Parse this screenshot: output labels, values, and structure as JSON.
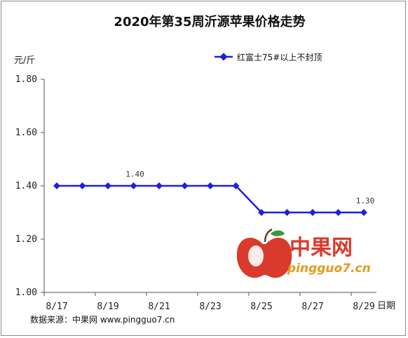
{
  "chart_data": {
    "type": "line",
    "title": "2020年第35周沂源苹果价格走势",
    "ylabel": "元/斤",
    "xlabel": "日期",
    "ylim": [
      1.0,
      1.8
    ],
    "yticks": [
      "1.00",
      "1.20",
      "1.40",
      "1.60",
      "1.80"
    ],
    "categories": [
      "8/17",
      "8/18",
      "8/19",
      "8/20",
      "8/21",
      "8/22",
      "8/23",
      "8/24",
      "8/25",
      "8/26",
      "8/27",
      "8/28",
      "8/29"
    ],
    "x_tick_labels": [
      "8/17",
      "8/19",
      "8/21",
      "8/23",
      "8/25",
      "8/27",
      "8/29"
    ],
    "series": [
      {
        "name": "红富士75#以上不封顶",
        "color": "#1f1fe0",
        "values": [
          1.4,
          1.4,
          1.4,
          1.4,
          1.4,
          1.4,
          1.4,
          1.4,
          1.3,
          1.3,
          1.3,
          1.3,
          1.3
        ]
      }
    ],
    "annotations": [
      {
        "index": 3,
        "text": "1.40"
      },
      {
        "index": 12,
        "text": "1.30"
      }
    ],
    "legend_position": "top-right",
    "grid": false
  },
  "source": "数据来源：中果网 www.pingguo7.cn",
  "watermark": {
    "cn": "中果网",
    "en": "pingguo7.cn"
  }
}
